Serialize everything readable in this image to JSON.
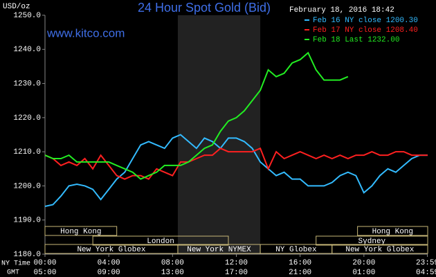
{
  "chart_data": {
    "type": "line",
    "title": "24 Hour Spot Gold (Bid)",
    "y_unit": "USD/oz",
    "timestamp": "February 18, 2016 18:42",
    "website": "www.kitco.com",
    "x_axis_label": "NY Time",
    "x2_axis_label": "GMT",
    "xlim": [
      0,
      24
    ],
    "xticks": [
      {
        "value": 0,
        "label": "00:00"
      },
      {
        "value": 4,
        "label": "04:00"
      },
      {
        "value": 8,
        "label": "08:00"
      },
      {
        "value": 12,
        "label": "12:00"
      },
      {
        "value": 16,
        "label": "16:00"
      },
      {
        "value": 20,
        "label": "20:00"
      },
      {
        "value": 23.98,
        "label": "23:59"
      }
    ],
    "x2ticks": [
      {
        "value": 0,
        "label": "05:00"
      },
      {
        "value": 4,
        "label": "09:00"
      },
      {
        "value": 8,
        "label": "13:00"
      },
      {
        "value": 12,
        "label": "17:00"
      },
      {
        "value": 16,
        "label": "21:00"
      },
      {
        "value": 20,
        "label": "01:00"
      },
      {
        "value": 23.98,
        "label": "04:59"
      }
    ],
    "ylim": [
      1180,
      1250
    ],
    "yticks": [
      {
        "value": 1180,
        "label": "1180.0"
      },
      {
        "value": 1190,
        "label": "1190.0"
      },
      {
        "value": 1200,
        "label": "1200.0"
      },
      {
        "value": 1210,
        "label": "1210.0"
      },
      {
        "value": 1220,
        "label": "1220.0"
      },
      {
        "value": 1230,
        "label": "1230.0"
      },
      {
        "value": 1240,
        "label": "1240.0"
      },
      {
        "value": 1250,
        "label": "1250.0"
      }
    ],
    "shaded_range": [
      8.33,
      13.5
    ],
    "sessions": [
      {
        "label": "Hong Kong",
        "start": 0,
        "end": 4.5,
        "row": 0
      },
      {
        "label": "Hong Kong",
        "start": 19.6,
        "end": 24,
        "row": 0
      },
      {
        "label": "London",
        "start": 3,
        "end": 11.5,
        "row": 1
      },
      {
        "label": "Sydney",
        "start": 17,
        "end": 24,
        "row": 1
      },
      {
        "label": "New York Globex",
        "start": 0,
        "end": 8.33,
        "row": 2
      },
      {
        "label": "New York NYMEX",
        "start": 8.33,
        "end": 13.5,
        "row": 2
      },
      {
        "label": "NY Globex",
        "start": 13.5,
        "end": 18,
        "row": 2
      },
      {
        "label": "New York Globex",
        "start": 18,
        "end": 24,
        "row": 2
      }
    ],
    "x": [
      0,
      0.5,
      1,
      1.5,
      2,
      2.5,
      3,
      3.5,
      4,
      4.5,
      5,
      5.5,
      6,
      6.5,
      7,
      7.5,
      8,
      8.5,
      9,
      9.5,
      10,
      10.5,
      11,
      11.5,
      12,
      12.5,
      13,
      13.5,
      14,
      14.5,
      15,
      15.5,
      16,
      16.5,
      17,
      17.5,
      18,
      18.5,
      19,
      19.5,
      20,
      20.5,
      21,
      21.5,
      22,
      22.5,
      23,
      23.5,
      24
    ],
    "series": [
      {
        "name": "Feb 16 NY close 1200.30",
        "color": "#33bbff",
        "values": [
          1194,
          1194.5,
          1197,
          1200,
          1200.5,
          1200,
          1199,
          1196,
          1199,
          1202,
          1204,
          1208,
          1212,
          1213,
          1212,
          1211,
          1214,
          1215,
          1213,
          1211,
          1214,
          1213,
          1211,
          1214,
          1214,
          1213,
          1211,
          1207,
          1205,
          1203,
          1204,
          1202,
          1202,
          1200,
          1200,
          1200,
          1201,
          1203,
          1204,
          1203,
          1198,
          1200,
          1203,
          1205,
          1204,
          1206,
          1208,
          1209,
          1209
        ]
      },
      {
        "name": "Feb 17 NY close 1208.40",
        "color": "#ff2020",
        "values": [
          1209,
          1208,
          1206,
          1207,
          1206,
          1208,
          1205,
          1209,
          1206,
          1203,
          1202,
          1203,
          1203,
          1202,
          1205,
          1204,
          1203,
          1207,
          1207,
          1208,
          1209,
          1209,
          1211,
          1210,
          1210,
          1210,
          1210,
          1211,
          1205,
          1210,
          1208,
          1209,
          1210,
          1209,
          1208,
          1209,
          1208,
          1209,
          1208,
          1209,
          1209,
          1210,
          1209,
          1209,
          1210,
          1210,
          1209,
          1209,
          1209
        ]
      },
      {
        "name": "Feb 18 Last 1232.00",
        "color": "#22ee22",
        "values": [
          1209,
          1208,
          1208,
          1209,
          1207,
          1207,
          1207,
          1207,
          1207,
          1206,
          1205,
          1204,
          1202,
          1203,
          1204,
          1206,
          1206,
          1206,
          1207,
          1209,
          1211,
          1212,
          1216,
          1219,
          1220,
          1222,
          1225,
          1228,
          1234,
          1232,
          1233,
          1236,
          1237,
          1239,
          1234,
          1231,
          1231,
          1231,
          1232,
          null,
          null,
          null,
          null,
          null,
          null,
          null,
          null,
          null,
          null
        ]
      }
    ]
  }
}
